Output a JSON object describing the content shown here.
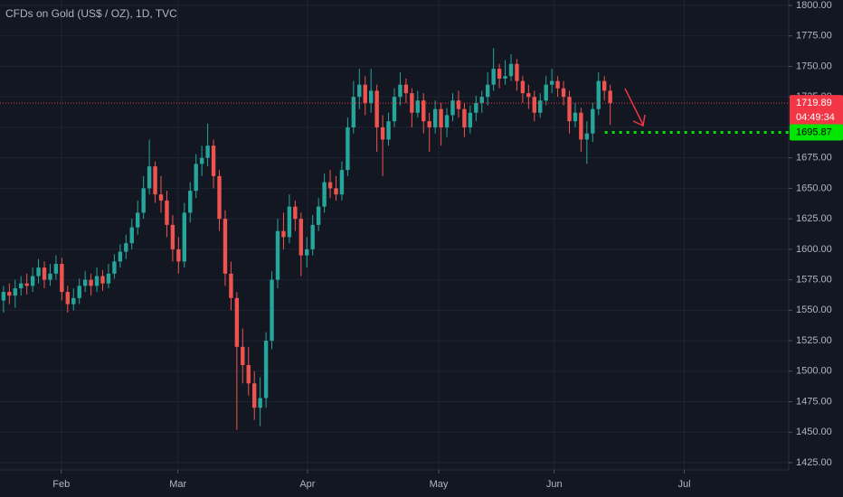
{
  "chart_data": {
    "type": "candlestick",
    "title": "CFDs on Gold (US$ / OZ), 1D, TVC",
    "up_color": "#26a69a",
    "down_color": "#ef5350",
    "grid": true,
    "xlim": [
      -0.6,
      134.6
    ],
    "xticks": [
      {
        "value": 9.9,
        "label": "Feb"
      },
      {
        "value": 29.9,
        "label": "Mar"
      },
      {
        "value": 52.1,
        "label": "Apr"
      },
      {
        "value": 74.6,
        "label": "May"
      },
      {
        "value": 94.4,
        "label": "Jun"
      },
      {
        "value": 116.7,
        "label": "Jul"
      }
    ],
    "ylim": [
      1425,
      1800
    ],
    "yticks": [
      {
        "value": 1425,
        "label": "1425.00"
      },
      {
        "value": 1450,
        "label": "1450.00"
      },
      {
        "value": 1475,
        "label": "1475.00"
      },
      {
        "value": 1500,
        "label": "1500.00"
      },
      {
        "value": 1525,
        "label": "1525.00"
      },
      {
        "value": 1550,
        "label": "1550.00"
      },
      {
        "value": 1575,
        "label": "1575.00"
      },
      {
        "value": 1600,
        "label": "1600.00"
      },
      {
        "value": 1625,
        "label": "1625.00"
      },
      {
        "value": 1650,
        "label": "1650.00"
      },
      {
        "value": 1675,
        "label": "1675.00"
      },
      {
        "value": 1700,
        "label": "1700.00"
      },
      {
        "value": 1725,
        "label": "1725.00"
      },
      {
        "value": 1750,
        "label": "1750.00"
      },
      {
        "value": 1775,
        "label": "1775.00"
      },
      {
        "value": 1800,
        "label": "1800.00"
      }
    ],
    "open": [
      1558,
      1565,
      1562,
      1568,
      1572,
      1570,
      1578,
      1585,
      1575,
      1580,
      1588,
      1565,
      1555,
      1560,
      1570,
      1575,
      1570,
      1578,
      1572,
      1580,
      1590,
      1598,
      1605,
      1618,
      1630,
      1650,
      1668,
      1645,
      1640,
      1620,
      1600,
      1590,
      1630,
      1648,
      1670,
      1675,
      1685,
      1660,
      1625,
      1580,
      1560,
      1520,
      1505,
      1490,
      1470,
      1478,
      1525,
      1575,
      1615,
      1610,
      1635,
      1625,
      1595,
      1600,
      1620,
      1635,
      1655,
      1650,
      1645,
      1665,
      1700,
      1725,
      1735,
      1720,
      1730,
      1700,
      1690,
      1705,
      1725,
      1735,
      1728,
      1712,
      1722,
      1705,
      1700,
      1715,
      1700,
      1710,
      1722,
      1715,
      1700,
      1712,
      1720,
      1725,
      1735,
      1748,
      1740,
      1742,
      1752,
      1738,
      1728,
      1725,
      1712,
      1722,
      1735,
      1738,
      1732,
      1725,
      1705,
      1712,
      1690,
      1695,
      1715,
      1738,
      1730
    ],
    "high": [
      1570,
      1572,
      1575,
      1578,
      1580,
      1585,
      1592,
      1590,
      1588,
      1595,
      1593,
      1570,
      1568,
      1576,
      1582,
      1580,
      1585,
      1583,
      1588,
      1596,
      1604,
      1612,
      1625,
      1640,
      1660,
      1690,
      1672,
      1660,
      1648,
      1628,
      1610,
      1638,
      1655,
      1678,
      1685,
      1703,
      1690,
      1665,
      1632,
      1590,
      1565,
      1535,
      1520,
      1500,
      1495,
      1532,
      1582,
      1625,
      1630,
      1645,
      1640,
      1630,
      1610,
      1628,
      1642,
      1662,
      1665,
      1660,
      1672,
      1708,
      1738,
      1748,
      1742,
      1748,
      1735,
      1710,
      1712,
      1732,
      1745,
      1740,
      1732,
      1730,
      1728,
      1712,
      1722,
      1720,
      1716,
      1728,
      1730,
      1720,
      1718,
      1726,
      1730,
      1745,
      1765,
      1752,
      1755,
      1760,
      1756,
      1742,
      1735,
      1730,
      1728,
      1742,
      1748,
      1742,
      1738,
      1730,
      1720,
      1716,
      1705,
      1720,
      1745,
      1742,
      1735
    ],
    "low": [
      1548,
      1555,
      1552,
      1562,
      1563,
      1565,
      1572,
      1568,
      1570,
      1575,
      1558,
      1548,
      1550,
      1555,
      1565,
      1562,
      1565,
      1566,
      1568,
      1576,
      1585,
      1592,
      1600,
      1612,
      1625,
      1645,
      1638,
      1630,
      1610,
      1590,
      1580,
      1585,
      1622,
      1642,
      1660,
      1668,
      1650,
      1615,
      1570,
      1550,
      1452,
      1490,
      1480,
      1460,
      1455,
      1470,
      1518,
      1568,
      1600,
      1605,
      1615,
      1578,
      1585,
      1595,
      1615,
      1630,
      1642,
      1640,
      1640,
      1660,
      1695,
      1715,
      1710,
      1712,
      1680,
      1660,
      1685,
      1700,
      1718,
      1720,
      1700,
      1708,
      1695,
      1680,
      1695,
      1685,
      1692,
      1705,
      1708,
      1692,
      1695,
      1705,
      1712,
      1718,
      1730,
      1732,
      1735,
      1738,
      1730,
      1720,
      1715,
      1705,
      1708,
      1718,
      1728,
      1725,
      1718,
      1695,
      1700,
      1680,
      1670,
      1688,
      1710,
      1722,
      1702
    ],
    "close": [
      1565,
      1562,
      1568,
      1572,
      1570,
      1578,
      1585,
      1575,
      1580,
      1588,
      1565,
      1555,
      1560,
      1570,
      1575,
      1570,
      1578,
      1572,
      1580,
      1590,
      1598,
      1605,
      1618,
      1630,
      1650,
      1668,
      1645,
      1640,
      1620,
      1600,
      1590,
      1630,
      1648,
      1670,
      1675,
      1685,
      1660,
      1625,
      1580,
      1560,
      1520,
      1505,
      1490,
      1470,
      1478,
      1525,
      1575,
      1615,
      1610,
      1635,
      1625,
      1595,
      1600,
      1620,
      1635,
      1655,
      1650,
      1645,
      1665,
      1700,
      1725,
      1735,
      1720,
      1730,
      1700,
      1690,
      1705,
      1725,
      1735,
      1728,
      1712,
      1722,
      1705,
      1700,
      1715,
      1700,
      1710,
      1722,
      1715,
      1700,
      1712,
      1720,
      1725,
      1735,
      1748,
      1740,
      1742,
      1752,
      1738,
      1728,
      1725,
      1712,
      1722,
      1735,
      1738,
      1732,
      1725,
      1705,
      1712,
      1690,
      1695,
      1715,
      1738,
      1730,
      1720
    ],
    "price_lines": [
      {
        "value": 1719.89,
        "color": "#f23645",
        "countdown": "04:49:34"
      },
      {
        "value": 1695.87,
        "color": "#00e600"
      }
    ]
  }
}
